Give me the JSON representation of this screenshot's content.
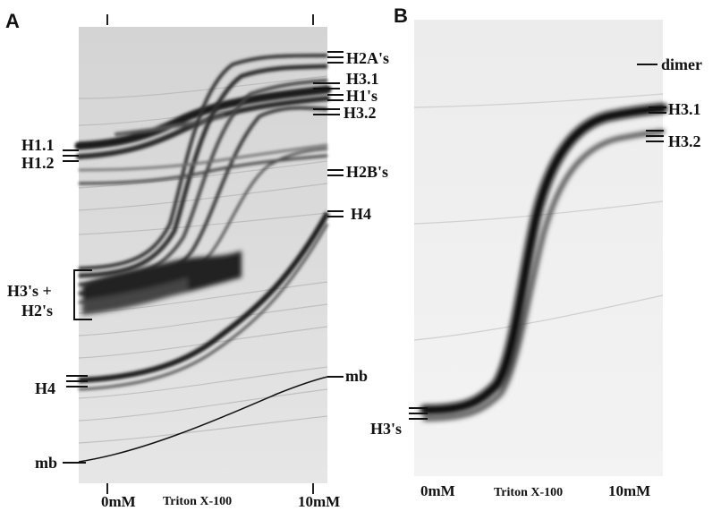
{
  "panel_a": {
    "letter": "A",
    "labels_right": {
      "h2a": "H2A's",
      "h3_1": "H3.1",
      "h1s": "H1's",
      "h3_2": "H3.2",
      "h2b": "H2B's",
      "h4": "H4",
      "mb": "mb"
    },
    "labels_left": {
      "h1_1": "H1.1",
      "h1_2": "H1.2",
      "h3s_line1": "H3's +",
      "h3s_line2": "H2's",
      "h4": "H4",
      "mb": "mb"
    },
    "axis": {
      "start": "0mM",
      "middle": "Triton X-100",
      "end": "10mM"
    }
  },
  "panel_b": {
    "letter": "B",
    "labels_right": {
      "dimer": "dimer",
      "h3_1": "H3.1",
      "h3_2": "H3.2"
    },
    "labels_left": {
      "h3s": "H3's"
    },
    "axis": {
      "start": "0mM",
      "middle": "Triton X-100",
      "end": "10mM"
    }
  },
  "colors": {
    "gel_background_a": "#d9d9d9",
    "gel_background_b": "#eeeeee",
    "band_dark": "#1a1a1a",
    "ink": "#111111"
  }
}
